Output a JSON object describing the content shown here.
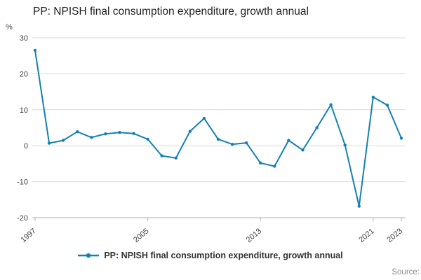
{
  "title": "PP: NPISH final consumption expenditure, growth annual",
  "footer": {
    "source_label": "Source:"
  },
  "legend": {
    "label": "PP: NPISH final consumption expenditure, growth annual"
  },
  "chart_data": {
    "type": "line",
    "title": "PP: NPISH final consumption expenditure, growth annual",
    "ylabel": "%",
    "xlabel": "",
    "ylim": [
      -20,
      30
    ],
    "yticks": [
      -20,
      -10,
      0,
      10,
      20,
      30
    ],
    "xticks": [
      1997,
      2005,
      2013,
      2021,
      2023
    ],
    "grid": true,
    "legend_position": "bottom",
    "line_color": "#1580b2",
    "grid_color": "#d9d9d9",
    "axis_color": "#b0b0b0",
    "tick_label_color": "#414042",
    "x": [
      1997,
      1998,
      1999,
      2000,
      2001,
      2002,
      2003,
      2004,
      2005,
      2006,
      2007,
      2008,
      2009,
      2010,
      2011,
      2012,
      2013,
      2014,
      2015,
      2016,
      2017,
      2018,
      2019,
      2020,
      2021,
      2022,
      2023
    ],
    "series": [
      {
        "name": "PP: NPISH final consumption expenditure, growth annual",
        "values": [
          26.5,
          0.7,
          1.5,
          3.9,
          2.3,
          3.3,
          3.7,
          3.4,
          1.8,
          -2.8,
          -3.4,
          4.0,
          7.6,
          1.8,
          0.4,
          0.8,
          -4.8,
          -5.7,
          1.5,
          -1.2,
          5.0,
          11.4,
          0.2,
          -16.8,
          13.5,
          11.3,
          2.1
        ]
      }
    ]
  }
}
